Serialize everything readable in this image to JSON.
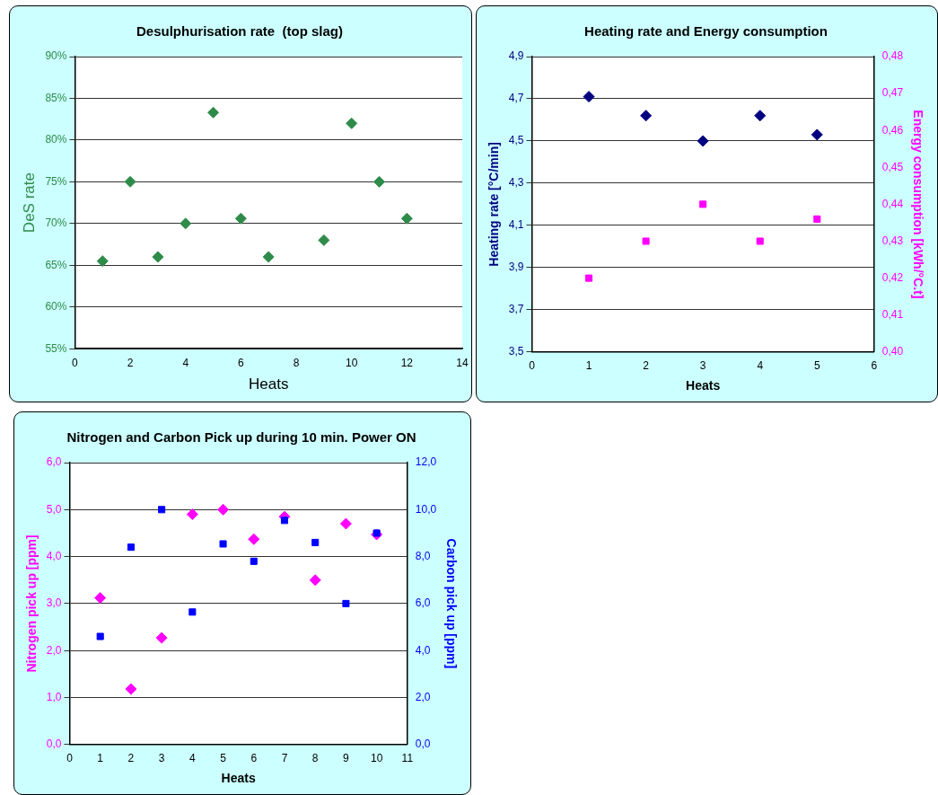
{
  "chart_data": [
    {
      "type": "scatter",
      "title": "Desulphurisation rate  (top slag)",
      "xlabel": "Heats",
      "ylabel": "DeS rate",
      "xlim": [
        0,
        14
      ],
      "xticks": [
        0,
        2,
        4,
        6,
        8,
        10,
        12,
        14
      ],
      "ylim": [
        55,
        90
      ],
      "yticks": [
        {
          "value": 55,
          "label": "55%"
        },
        {
          "value": 60,
          "label": "60%"
        },
        {
          "value": 65,
          "label": "65%"
        },
        {
          "value": 70,
          "label": "70%"
        },
        {
          "value": 75,
          "label": "75%"
        },
        {
          "value": 80,
          "label": "80%"
        },
        {
          "value": 85,
          "label": "85%"
        },
        {
          "value": 90,
          "label": "90%"
        }
      ],
      "grid": "y",
      "legend": false,
      "marker": "diamond",
      "series": [
        {
          "color": "#2e8b4a",
          "x": [
            1,
            2,
            3,
            4,
            5,
            6,
            7,
            9,
            10,
            11,
            12
          ],
          "values": [
            65.5,
            75,
            66,
            70,
            83.3,
            70.6,
            66,
            68,
            82,
            75,
            70.6
          ]
        }
      ]
    },
    {
      "type": "scatter",
      "title": "Heating rate and Energy consumption",
      "xlabel": "Heats",
      "ylabel": "Heating rate [°C/min]",
      "y2label": "Energy consumption [kWh/°C.t]",
      "xlim": [
        0,
        6
      ],
      "xticks": [
        0,
        1,
        2,
        3,
        4,
        5,
        6
      ],
      "ylim": [
        3.5,
        4.9
      ],
      "yticks": [
        {
          "value": 3.5,
          "label": "3,5"
        },
        {
          "value": 3.7,
          "label": "3,7"
        },
        {
          "value": 3.9,
          "label": "3,9"
        },
        {
          "value": 4.1,
          "label": "4,1"
        },
        {
          "value": 4.3,
          "label": "4,3"
        },
        {
          "value": 4.5,
          "label": "4,5"
        },
        {
          "value": 4.7,
          "label": "4,7"
        },
        {
          "value": 4.9,
          "label": "4,9"
        }
      ],
      "y2lim": [
        0.4,
        0.48
      ],
      "y2ticks": [
        {
          "value": 0.4,
          "label": "0,40"
        },
        {
          "value": 0.41,
          "label": "0,41"
        },
        {
          "value": 0.42,
          "label": "0,42"
        },
        {
          "value": 0.43,
          "label": "0,43"
        },
        {
          "value": 0.44,
          "label": "0,44"
        },
        {
          "value": 0.45,
          "label": "0,45"
        },
        {
          "value": 0.46,
          "label": "0,46"
        },
        {
          "value": 0.47,
          "label": "0,47"
        },
        {
          "value": 0.48,
          "label": "0,48"
        }
      ],
      "grid": "y",
      "legend": false,
      "series": [
        {
          "color": "#000080",
          "marker": "diamond",
          "x": [
            1,
            2,
            3,
            4,
            5
          ],
          "values": [
            4.71,
            4.62,
            4.5,
            4.62,
            4.53
          ]
        },
        {
          "color": "#ff00ff",
          "marker": "square",
          "axis": "y2",
          "x": [
            1,
            2,
            3,
            4,
            5
          ],
          "values": [
            0.42,
            0.43,
            0.44,
            0.43,
            0.436
          ]
        }
      ]
    },
    {
      "type": "scatter",
      "title": "Nitrogen and Carbon Pick up during 10 min. Power ON",
      "xlabel": "Heats",
      "ylabel": "Nitrogen pick up [ppm]",
      "y2label": "Carbon pick up [ppm]",
      "xlim": [
        0,
        11
      ],
      "xticks": [
        0,
        1,
        2,
        3,
        4,
        5,
        6,
        7,
        8,
        9,
        10,
        11
      ],
      "ylim": [
        0,
        6
      ],
      "yticks": [
        {
          "value": 0,
          "label": "0,0"
        },
        {
          "value": 1,
          "label": "1,0"
        },
        {
          "value": 2,
          "label": "2,0"
        },
        {
          "value": 3,
          "label": "3,0"
        },
        {
          "value": 4,
          "label": "4,0"
        },
        {
          "value": 5,
          "label": "5,0"
        },
        {
          "value": 6,
          "label": "6,0"
        }
      ],
      "y2lim": [
        0,
        12
      ],
      "y2ticks": [
        {
          "value": 0,
          "label": "0,0"
        },
        {
          "value": 2,
          "label": "2,0"
        },
        {
          "value": 4,
          "label": "4,0"
        },
        {
          "value": 6,
          "label": "6,0"
        },
        {
          "value": 8,
          "label": "8,0"
        },
        {
          "value": 10,
          "label": "10,0"
        },
        {
          "value": 12,
          "label": "12,0"
        }
      ],
      "grid": "y",
      "legend": false,
      "series": [
        {
          "color": "#ff00ff",
          "marker": "diamond",
          "x": [
            1,
            2,
            3,
            4,
            5,
            6,
            7,
            8,
            9,
            10
          ],
          "values": [
            3.12,
            1.18,
            2.27,
            4.9,
            5.0,
            4.37,
            4.85,
            3.5,
            4.7,
            4.47
          ]
        },
        {
          "color": "#0000ff",
          "marker": "square",
          "axis": "y2",
          "x": [
            1,
            2,
            3,
            4,
            5,
            6,
            7,
            8,
            9,
            10
          ],
          "values": [
            4.6,
            8.4,
            10.0,
            5.64,
            8.54,
            7.8,
            9.54,
            8.6,
            6.0,
            9.0
          ]
        }
      ]
    }
  ]
}
